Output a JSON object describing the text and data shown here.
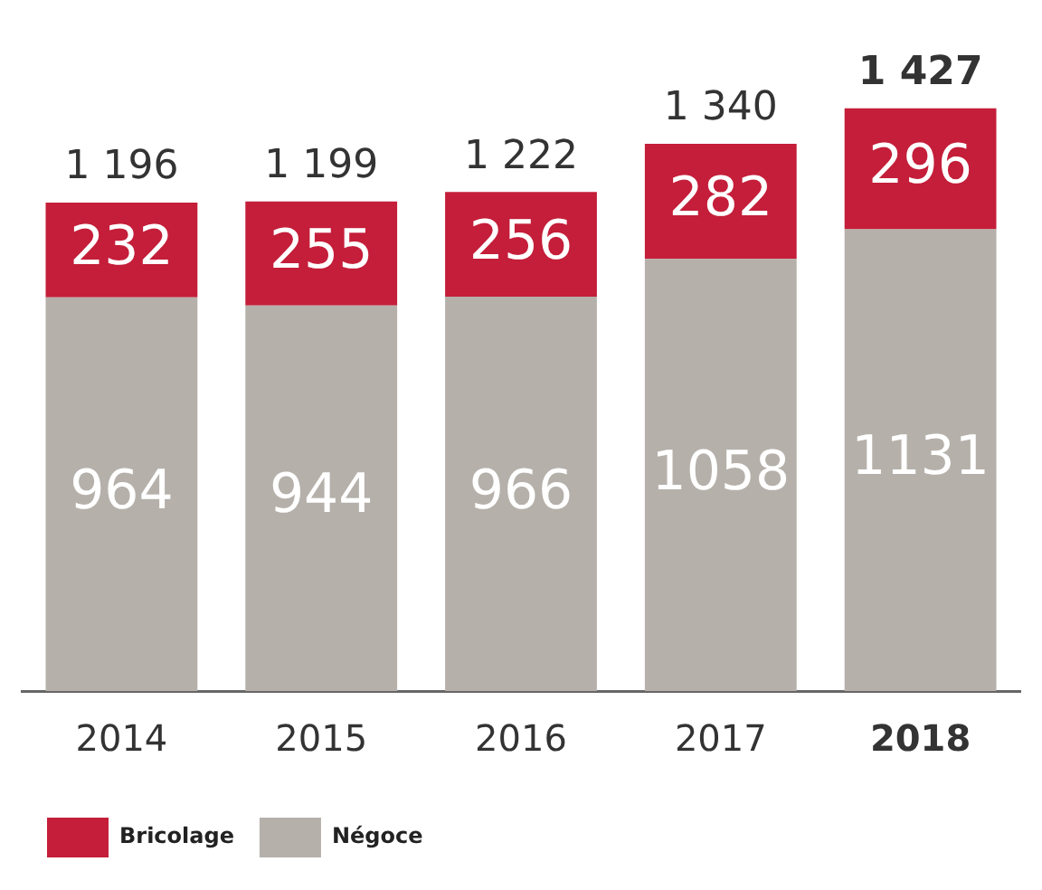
{
  "chart_data": {
    "type": "bar",
    "stacked": true,
    "categories": [
      "2014",
      "2015",
      "2016",
      "2017",
      "2018"
    ],
    "series": [
      {
        "name": "Négoce",
        "color": "#b5b0aa",
        "values": [
          964,
          944,
          966,
          1058,
          1131
        ]
      },
      {
        "name": "Bricolage",
        "color": "#c41e3a",
        "values": [
          232,
          255,
          256,
          282,
          296
        ]
      }
    ],
    "totals": [
      "1 196",
      "1 199",
      "1 222",
      "1 340",
      "1 427"
    ],
    "data_labels": true,
    "legend": "bottom left",
    "grid": false
  }
}
